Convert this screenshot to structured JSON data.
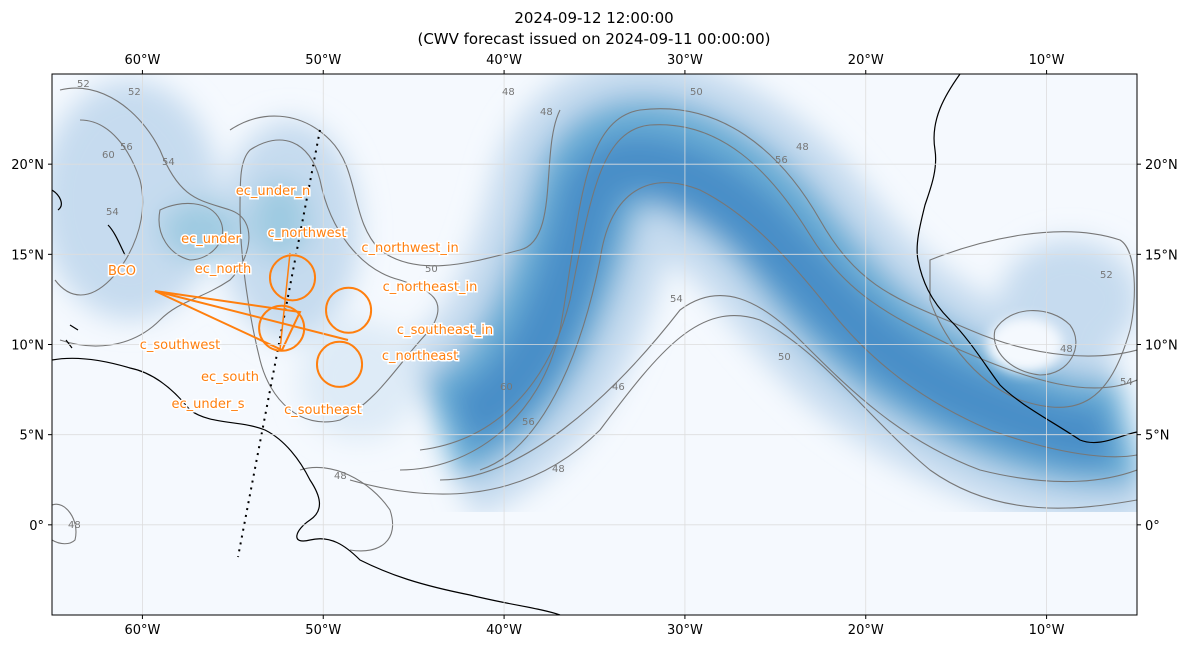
{
  "title": "2024-09-12 12:00:00",
  "subtitle": "(CWV forecast issued on 2024-09-11 00:00:00)",
  "map": {
    "lon_range": [
      -65,
      -5
    ],
    "lat_range": [
      -5,
      25
    ],
    "lon_ticks": [
      {
        "value": -60,
        "label": "60°W"
      },
      {
        "value": -50,
        "label": "50°W"
      },
      {
        "value": -40,
        "label": "40°W"
      },
      {
        "value": -30,
        "label": "30°W"
      },
      {
        "value": -20,
        "label": "20°W"
      },
      {
        "value": -10,
        "label": "10°W"
      }
    ],
    "lat_ticks": [
      {
        "value": 20,
        "label": "20°N"
      },
      {
        "value": 15,
        "label": "15°N"
      },
      {
        "value": 10,
        "label": "10°N"
      },
      {
        "value": 5,
        "label": "5°N"
      },
      {
        "value": 0,
        "label": "0°"
      }
    ],
    "circles": [
      {
        "lon": -51.7,
        "lat": 13.7,
        "radius": 1.25
      },
      {
        "lon": -48.6,
        "lat": 11.9,
        "radius": 1.25
      },
      {
        "lon": -52.3,
        "lat": 10.9,
        "radius": 1.25
      },
      {
        "lon": -49.1,
        "lat": 8.9,
        "radius": 1.25
      }
    ],
    "waypoints": [
      "ec_under_n",
      "c_northwest",
      "c_northwest_in",
      "ec_under",
      "ec_north",
      "BCO",
      "c_northeast_in",
      "c_southeast_in",
      "c_southwest",
      "c_northeast",
      "ec_south",
      "ec_under_s",
      "c_southeast"
    ],
    "contour_labels": [
      52,
      52,
      60,
      56,
      54,
      54,
      48,
      48,
      50,
      48,
      56,
      60,
      56,
      48,
      46,
      54,
      50,
      48,
      54,
      52,
      48,
      48,
      50
    ]
  }
}
